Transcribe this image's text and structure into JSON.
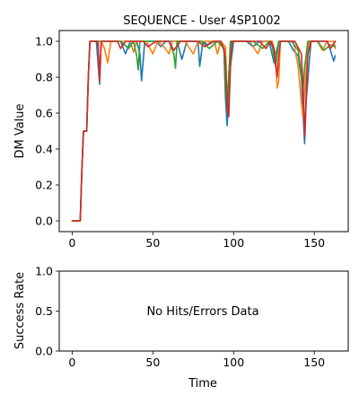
{
  "chart_data": [
    {
      "type": "line",
      "title": "SEQUENCE - User 4SP1002",
      "xlabel": "",
      "ylabel": "DM Value",
      "xlim": [
        -8,
        171
      ],
      "ylim": [
        -0.06,
        1.06
      ],
      "xticks": [
        0,
        50,
        100,
        150
      ],
      "yticks": [
        0.0,
        0.2,
        0.4,
        0.6,
        0.8,
        1.0
      ],
      "ytick_labels": [
        "0.0",
        "0.2",
        "0.4",
        "0.6",
        "0.8",
        "1.0"
      ],
      "grid": false,
      "series": [
        {
          "color": "#1f77b4",
          "points": [
            [
              0,
              0
            ],
            [
              5,
              0
            ],
            [
              6,
              0.28
            ],
            [
              7,
              0.5
            ],
            [
              9,
              0.5
            ],
            [
              10,
              0.8
            ],
            [
              11,
              1.0
            ],
            [
              15,
              1.0
            ],
            [
              17,
              0.76
            ],
            [
              18,
              1.0
            ],
            [
              30,
              1.0
            ],
            [
              33,
              0.93
            ],
            [
              36,
              1.0
            ],
            [
              40,
              1.0
            ],
            [
              42,
              0.93
            ],
            [
              43,
              0.78
            ],
            [
              45,
              1.0
            ],
            [
              52,
              1.0
            ],
            [
              55,
              0.97
            ],
            [
              58,
              1.0
            ],
            [
              65,
              1.0
            ],
            [
              68,
              0.9
            ],
            [
              71,
              1.0
            ],
            [
              78,
              1.0
            ],
            [
              79,
              0.86
            ],
            [
              81,
              1.0
            ],
            [
              84,
              0.98
            ],
            [
              86,
              1.0
            ],
            [
              92,
              1.0
            ],
            [
              94,
              0.95
            ],
            [
              95,
              0.68
            ],
            [
              96,
              0.53
            ],
            [
              97,
              0.72
            ],
            [
              98,
              0.86
            ],
            [
              100,
              1.0
            ],
            [
              108,
              1.0
            ],
            [
              112,
              0.97
            ],
            [
              116,
              1.0
            ],
            [
              122,
              1.0
            ],
            [
              125,
              0.88
            ],
            [
              128,
              1.0
            ],
            [
              134,
              1.0
            ],
            [
              137,
              0.95
            ],
            [
              140,
              0.92
            ],
            [
              142,
              0.8
            ],
            [
              144,
              0.43
            ],
            [
              145,
              0.67
            ],
            [
              147,
              0.9
            ],
            [
              148,
              1.0
            ],
            [
              158,
              1.0
            ],
            [
              160,
              0.95
            ],
            [
              162,
              0.89
            ],
            [
              163,
              0.92
            ]
          ]
        },
        {
          "color": "#ff7f0e",
          "points": [
            [
              0,
              0
            ],
            [
              5,
              0
            ],
            [
              6,
              0.28
            ],
            [
              7,
              0.5
            ],
            [
              9,
              0.5
            ],
            [
              10,
              0.8
            ],
            [
              11,
              1.0
            ],
            [
              16,
              1.0
            ],
            [
              17,
              0.78
            ],
            [
              18,
              1.0
            ],
            [
              20,
              0.96
            ],
            [
              22,
              0.88
            ],
            [
              24,
              1.0
            ],
            [
              36,
              1.0
            ],
            [
              38,
              0.94
            ],
            [
              40,
              1.0
            ],
            [
              46,
              1.0
            ],
            [
              50,
              0.93
            ],
            [
              53,
              1.0
            ],
            [
              56,
              0.98
            ],
            [
              60,
              0.93
            ],
            [
              62,
              1.0
            ],
            [
              70,
              1.0
            ],
            [
              75,
              0.93
            ],
            [
              78,
              1.0
            ],
            [
              88,
              1.0
            ],
            [
              90,
              0.93
            ],
            [
              92,
              1.0
            ],
            [
              95,
              0.97
            ],
            [
              96,
              0.64
            ],
            [
              97,
              0.82
            ],
            [
              99,
              1.0
            ],
            [
              110,
              1.0
            ],
            [
              115,
              0.93
            ],
            [
              118,
              1.0
            ],
            [
              124,
              1.0
            ],
            [
              126,
              0.92
            ],
            [
              127,
              0.74
            ],
            [
              128,
              0.78
            ],
            [
              129,
              1.0
            ],
            [
              137,
              1.0
            ],
            [
              140,
              0.86
            ],
            [
              142,
              0.66
            ],
            [
              143,
              0.58
            ],
            [
              144,
              0.72
            ],
            [
              146,
              0.96
            ],
            [
              147,
              1.0
            ],
            [
              152,
              1.0
            ],
            [
              155,
              0.95
            ],
            [
              158,
              1.0
            ],
            [
              162,
              1.0
            ],
            [
              163,
              0.96
            ]
          ]
        },
        {
          "color": "#2ca02c",
          "points": [
            [
              0,
              0
            ],
            [
              5,
              0
            ],
            [
              6,
              0.28
            ],
            [
              7,
              0.5
            ],
            [
              9,
              0.5
            ],
            [
              10,
              0.8
            ],
            [
              11,
              1.0
            ],
            [
              30,
              1.0
            ],
            [
              35,
              0.96
            ],
            [
              38,
              1.0
            ],
            [
              40,
              0.92
            ],
            [
              41,
              0.84
            ],
            [
              42,
              1.0
            ],
            [
              60,
              1.0
            ],
            [
              63,
              0.93
            ],
            [
              64,
              0.85
            ],
            [
              65,
              1.0
            ],
            [
              80,
              1.0
            ],
            [
              85,
              0.96
            ],
            [
              90,
              1.0
            ],
            [
              94,
              0.96
            ],
            [
              95,
              0.75
            ],
            [
              96,
              0.62
            ],
            [
              97,
              0.8
            ],
            [
              98,
              1.0
            ],
            [
              112,
              1.0
            ],
            [
              118,
              0.96
            ],
            [
              122,
              1.0
            ],
            [
              124,
              0.97
            ],
            [
              126,
              0.86
            ],
            [
              128,
              1.0
            ],
            [
              136,
              1.0
            ],
            [
              140,
              0.95
            ],
            [
              142,
              0.82
            ],
            [
              143,
              0.72
            ],
            [
              144,
              0.85
            ],
            [
              146,
              1.0
            ],
            [
              152,
              1.0
            ],
            [
              156,
              0.95
            ],
            [
              160,
              0.98
            ],
            [
              163,
              0.97
            ]
          ]
        },
        {
          "color": "#d62728",
          "points": [
            [
              0,
              0
            ],
            [
              5,
              0
            ],
            [
              6,
              0.28
            ],
            [
              7,
              0.5
            ],
            [
              9,
              0.5
            ],
            [
              10,
              0.8
            ],
            [
              11,
              1.0
            ],
            [
              16,
              1.0
            ],
            [
              17,
              0.78
            ],
            [
              18,
              1.0
            ],
            [
              28,
              1.0
            ],
            [
              30,
              0.96
            ],
            [
              33,
              1.0
            ],
            [
              44,
              1.0
            ],
            [
              47,
              0.97
            ],
            [
              52,
              1.0
            ],
            [
              60,
              1.0
            ],
            [
              63,
              0.95
            ],
            [
              67,
              1.0
            ],
            [
              78,
              1.0
            ],
            [
              82,
              0.97
            ],
            [
              88,
              1.0
            ],
            [
              92,
              1.0
            ],
            [
              94,
              0.96
            ],
            [
              95,
              0.9
            ],
            [
              96,
              0.64
            ],
            [
              97,
              0.58
            ],
            [
              98,
              0.85
            ],
            [
              99,
              1.0
            ],
            [
              116,
              1.0
            ],
            [
              120,
              0.96
            ],
            [
              123,
              1.0
            ],
            [
              125,
              0.96
            ],
            [
              127,
              0.8
            ],
            [
              128,
              0.92
            ],
            [
              129,
              1.0
            ],
            [
              138,
              1.0
            ],
            [
              142,
              0.93
            ],
            [
              143,
              0.75
            ],
            [
              144,
              0.47
            ],
            [
              145,
              0.72
            ],
            [
              146,
              0.93
            ],
            [
              148,
              1.0
            ],
            [
              158,
              1.0
            ],
            [
              160,
              0.96
            ],
            [
              163,
              1.0
            ]
          ]
        }
      ]
    },
    {
      "type": "line",
      "title": "",
      "xlabel": "Time",
      "ylabel": "Success Rate",
      "xlim": [
        -8,
        171
      ],
      "ylim": [
        0,
        1
      ],
      "xticks": [
        0,
        50,
        100,
        150
      ],
      "yticks": [
        0.0,
        0.5,
        1.0
      ],
      "ytick_labels": [
        "0.0",
        "0.5",
        "1.0"
      ],
      "grid": false,
      "series": [],
      "annotation": "No Hits/Errors Data"
    }
  ]
}
